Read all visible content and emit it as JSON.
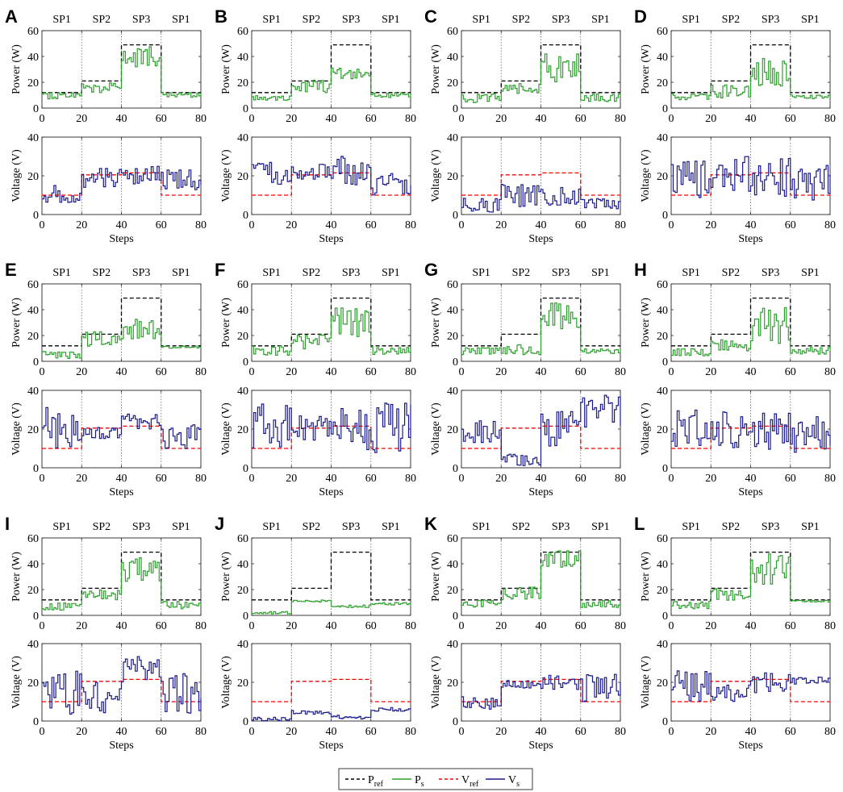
{
  "chart_data": {
    "type": "line",
    "layout": "3 x 4 grid of panels; each panel has a power plot (top) and a voltage plot (bottom)",
    "setpoint_labels": [
      "SP1",
      "SP2",
      "SP3",
      "SP1"
    ],
    "segment_boundaries": [
      20,
      40,
      60
    ],
    "x_axis": {
      "label": "Steps",
      "range": [
        0,
        80
      ],
      "ticks": [
        0,
        20,
        40,
        60,
        80
      ]
    },
    "power_axis": {
      "label": "Power (W)",
      "range": [
        0,
        60
      ],
      "ticks": [
        0,
        20,
        40,
        60
      ]
    },
    "voltage_axis": {
      "label": "Voltage (V)",
      "range": [
        0,
        40
      ],
      "ticks": [
        0,
        20,
        40
      ]
    },
    "reference": {
      "P_ref": [
        12,
        21,
        49,
        12
      ],
      "V_ref": [
        10,
        20.5,
        21.5,
        10
      ]
    },
    "legend": {
      "placement": "bottom-center",
      "entries": [
        {
          "base": "P",
          "sub": "ref",
          "color": "#000000",
          "dash": true
        },
        {
          "base": "P",
          "sub": "s",
          "color": "#2ca02c",
          "dash": false
        },
        {
          "base": "V",
          "sub": "ref",
          "color": "#ff0000",
          "dash": true
        },
        {
          "base": "V",
          "sub": "s",
          "color": "#1a1a8c",
          "dash": false
        }
      ]
    },
    "colors": {
      "p_ref": "#000000",
      "p_s": "#2ca02c",
      "v_ref": "#ff0000",
      "v_s": "#1a1a8c",
      "divider": "#777777"
    },
    "panels": [
      {
        "label": "A",
        "P_s": [
          [
            0,
            10,
            3
          ],
          [
            20,
            16,
            4
          ],
          [
            40,
            40,
            9
          ],
          [
            60,
            10,
            2
          ]
        ],
        "V_s": [
          [
            0,
            11,
            5
          ],
          [
            20,
            19,
            5
          ],
          [
            40,
            20,
            5
          ],
          [
            60,
            18,
            6
          ]
        ]
      },
      {
        "label": "B",
        "P_s": [
          [
            0,
            8,
            2
          ],
          [
            20,
            17,
            5
          ],
          [
            40,
            26,
            5
          ],
          [
            60,
            10,
            2
          ]
        ],
        "V_s": [
          [
            0,
            22,
            7
          ],
          [
            20,
            22,
            4
          ],
          [
            40,
            24,
            9
          ],
          [
            60,
            16,
            6
          ]
        ]
      },
      {
        "label": "C",
        "P_s": [
          [
            0,
            8,
            4
          ],
          [
            20,
            15,
            4
          ],
          [
            40,
            32,
            12
          ],
          [
            60,
            8,
            3
          ]
        ],
        "V_s": [
          [
            0,
            5,
            4
          ],
          [
            20,
            10,
            6
          ],
          [
            40,
            10,
            6
          ],
          [
            60,
            6,
            3
          ]
        ]
      },
      {
        "label": "D",
        "P_s": [
          [
            0,
            9,
            3
          ],
          [
            20,
            12,
            6
          ],
          [
            40,
            28,
            12
          ],
          [
            60,
            9,
            2
          ]
        ],
        "V_s": [
          [
            0,
            18,
            10
          ],
          [
            20,
            21,
            9
          ],
          [
            40,
            19,
            10
          ],
          [
            60,
            17,
            10
          ]
        ]
      },
      {
        "label": "E",
        "P_s": [
          [
            0,
            5,
            3
          ],
          [
            20,
            17,
            6
          ],
          [
            40,
            25,
            8
          ],
          [
            60,
            11,
            1
          ]
        ],
        "V_s": [
          [
            0,
            22,
            12
          ],
          [
            20,
            18,
            3
          ],
          [
            40,
            24,
            4
          ],
          [
            60,
            16,
            7
          ]
        ]
      },
      {
        "label": "F",
        "P_s": [
          [
            0,
            8,
            4
          ],
          [
            20,
            15,
            6
          ],
          [
            40,
            30,
            12
          ],
          [
            60,
            8,
            3
          ]
        ],
        "V_s": [
          [
            0,
            22,
            12
          ],
          [
            20,
            21,
            7
          ],
          [
            40,
            20,
            11
          ],
          [
            60,
            20,
            14
          ]
        ]
      },
      {
        "label": "G",
        "P_s": [
          [
            0,
            8,
            3
          ],
          [
            20,
            9,
            4
          ],
          [
            40,
            35,
            12
          ],
          [
            60,
            8,
            2
          ]
        ],
        "V_s": [
          [
            0,
            19,
            6
          ],
          [
            20,
            4,
            3
          ],
          [
            40,
            20,
            9
          ],
          [
            60,
            29,
            9
          ]
        ]
      },
      {
        "label": "H",
        "P_s": [
          [
            0,
            7,
            3
          ],
          [
            20,
            12,
            5
          ],
          [
            40,
            28,
            14
          ],
          [
            60,
            8,
            3
          ]
        ],
        "V_s": [
          [
            0,
            21,
            10
          ],
          [
            20,
            20,
            10
          ],
          [
            40,
            19,
            10
          ],
          [
            60,
            17,
            10
          ]
        ]
      },
      {
        "label": "I",
        "P_s": [
          [
            0,
            7,
            3
          ],
          [
            20,
            16,
            4
          ],
          [
            40,
            36,
            10
          ],
          [
            60,
            8,
            3
          ]
        ],
        "V_s": [
          [
            0,
            15,
            12
          ],
          [
            20,
            12,
            8
          ],
          [
            40,
            27,
            7
          ],
          [
            60,
            15,
            11
          ]
        ]
      },
      {
        "label": "J",
        "P_s": [
          [
            0,
            2,
            1
          ],
          [
            20,
            11,
            1
          ],
          [
            40,
            7,
            1
          ],
          [
            60,
            9,
            1
          ]
        ],
        "V_s": [
          [
            0,
            1,
            1
          ],
          [
            20,
            4.5,
            1
          ],
          [
            40,
            2,
            1
          ],
          [
            60,
            6,
            1
          ]
        ]
      },
      {
        "label": "K",
        "P_s": [
          [
            0,
            9,
            3
          ],
          [
            20,
            17,
            5
          ],
          [
            40,
            44,
            7
          ],
          [
            60,
            9,
            3
          ]
        ],
        "V_s": [
          [
            0,
            10,
            4
          ],
          [
            20,
            19,
            2
          ],
          [
            40,
            20,
            4
          ],
          [
            60,
            18,
            8
          ]
        ]
      },
      {
        "label": "L",
        "P_s": [
          [
            0,
            8,
            3
          ],
          [
            20,
            16,
            5
          ],
          [
            40,
            36,
            12
          ],
          [
            60,
            11,
            1
          ]
        ],
        "V_s": [
          [
            0,
            18,
            8
          ],
          [
            20,
            15,
            5
          ],
          [
            40,
            19,
            6
          ],
          [
            60,
            21,
            2
          ]
        ]
      }
    ]
  }
}
